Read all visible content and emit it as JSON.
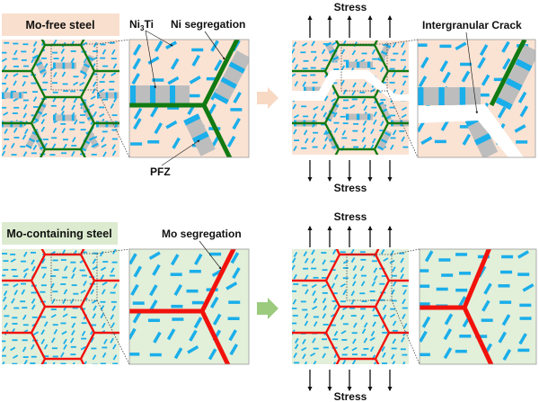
{
  "top_row": {
    "title": "Mo-free steel",
    "label_ni3ti_main": "Ni",
    "label_ni3ti_sub": "3",
    "label_ni3ti_tail": "Ti",
    "label_ni_segregation": "Ni segregation",
    "label_pfz": "PFZ",
    "label_stress_top": "Stress",
    "label_stress_bottom": "Stress",
    "label_crack": "Intergranular Crack"
  },
  "bottom_row": {
    "title": "Mo-containing steel",
    "label_mo_segregation": "Mo segregation",
    "label_stress_top": "Stress",
    "label_stress_bottom": "Stress"
  },
  "colors": {
    "mo_free_bg": "#fbe3d4",
    "mo_containing_bg": "#e2efd9",
    "ni_boundary": "#127a12",
    "mo_boundary": "#f2120c",
    "precipitate": "#1aaeea",
    "pfz": "#bdbdbd",
    "arrow_top": "#f7d9c4",
    "arrow_bottom": "#9ccb7e"
  }
}
